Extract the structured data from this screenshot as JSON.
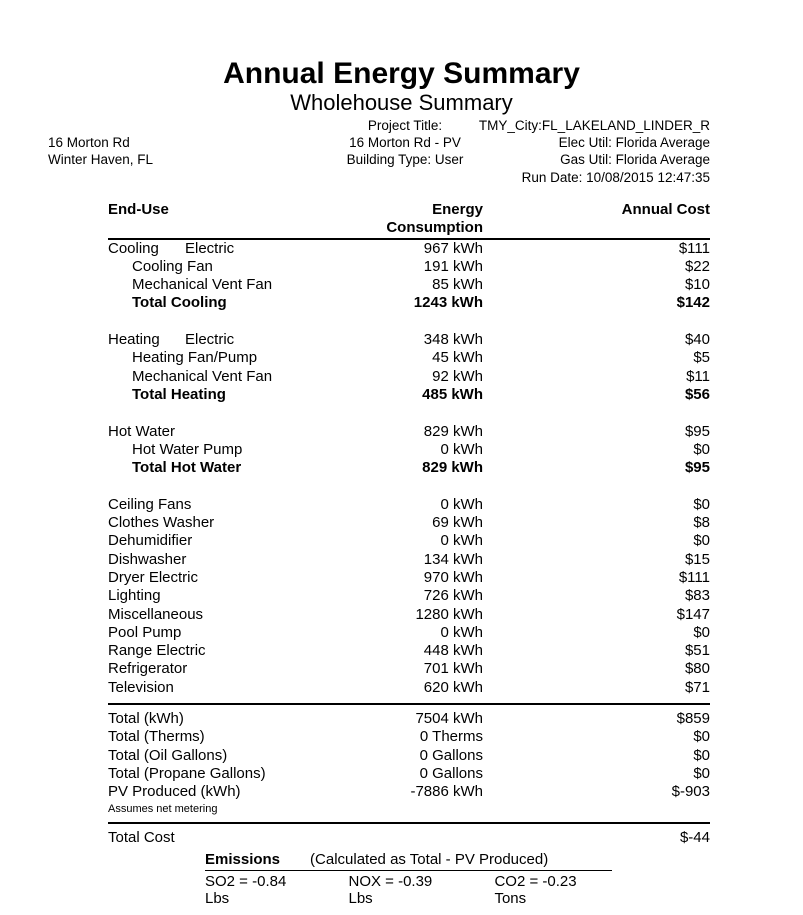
{
  "page": {
    "title": "Annual Energy Summary",
    "subtitle": "Wholehouse Summary"
  },
  "header_info": {
    "address": {
      "line1": "16 Morton Rd",
      "line2": "Winter Haven, FL"
    },
    "project": {
      "line1": "Project Title:",
      "line2": "16 Morton Rd - PV",
      "line3": "Building Type: User"
    },
    "site": {
      "line1": "TMY_City:FL_LAKELAND_LINDER_R",
      "line2": "Elec Util: Florida Average",
      "line3": "Gas Util: Florida Average",
      "line4": "Run Date: 10/08/2015 12:47:35"
    }
  },
  "table": {
    "columns": {
      "end_use": "End-Use",
      "consumption": "Energy Consumption",
      "cost": "Annual Cost"
    },
    "rows": [
      {
        "type": "data",
        "label": "Cooling",
        "fuel": "Electric",
        "value": "967 kWh",
        "cost": "$111"
      },
      {
        "type": "data",
        "label": "Cooling Fan",
        "indent": true,
        "value": "191 kWh",
        "cost": "$22"
      },
      {
        "type": "data",
        "label": "Mechanical Vent Fan",
        "indent": true,
        "value": "85 kWh",
        "cost": "$10"
      },
      {
        "type": "data",
        "label": "Total Cooling",
        "indent": true,
        "bold": true,
        "value": "1243 kWh",
        "cost": "$142"
      },
      {
        "type": "spacer"
      },
      {
        "type": "data",
        "label": "Heating",
        "fuel": "Electric",
        "value": "348 kWh",
        "cost": "$40"
      },
      {
        "type": "data",
        "label": "Heating Fan/Pump",
        "indent": true,
        "value": "45 kWh",
        "cost": "$5"
      },
      {
        "type": "data",
        "label": "Mechanical Vent Fan",
        "indent": true,
        "value": "92 kWh",
        "cost": "$11"
      },
      {
        "type": "data",
        "label": "Total Heating",
        "indent": true,
        "bold": true,
        "value": "485 kWh",
        "cost": "$56"
      },
      {
        "type": "spacer"
      },
      {
        "type": "data",
        "label": "Hot Water",
        "value": "829 kWh",
        "cost": "$95"
      },
      {
        "type": "data",
        "label": "Hot Water Pump",
        "indent": true,
        "value": "0 kWh",
        "cost": "$0"
      },
      {
        "type": "data",
        "label": "Total Hot Water",
        "indent": true,
        "bold": true,
        "value": "829 kWh",
        "cost": "$95"
      },
      {
        "type": "spacer"
      },
      {
        "type": "data",
        "label": "Ceiling Fans",
        "value": "0 kWh",
        "cost": "$0"
      },
      {
        "type": "data",
        "label": "Clothes Washer",
        "value": "69 kWh",
        "cost": "$8"
      },
      {
        "type": "data",
        "label": "Dehumidifier",
        "value": "0 kWh",
        "cost": "$0"
      },
      {
        "type": "data",
        "label": "Dishwasher",
        "value": "134 kWh",
        "cost": "$15"
      },
      {
        "type": "data",
        "label": "Dryer Electric",
        "value": "970 kWh",
        "cost": "$111"
      },
      {
        "type": "data",
        "label": "Lighting",
        "value": "726 kWh",
        "cost": "$83"
      },
      {
        "type": "data",
        "label": "Miscellaneous",
        "value": "1280 kWh",
        "cost": "$147"
      },
      {
        "type": "data",
        "label": "Pool Pump",
        "value": "0 kWh",
        "cost": "$0"
      },
      {
        "type": "data",
        "label": "Range Electric",
        "value": "448 kWh",
        "cost": "$51"
      },
      {
        "type": "data",
        "label": "Refrigerator",
        "value": "701 kWh",
        "cost": "$80"
      },
      {
        "type": "data",
        "label": "Television",
        "value": "620 kWh",
        "cost": "$71"
      },
      {
        "type": "rule"
      },
      {
        "type": "data",
        "label": "Total (kWh)",
        "value": "7504 kWh",
        "cost": "$859"
      },
      {
        "type": "data",
        "label": "Total (Therms)",
        "value": "0 Therms",
        "cost": "$0"
      },
      {
        "type": "data",
        "label": "Total (Oil Gallons)",
        "value": "0 Gallons",
        "cost": "$0"
      },
      {
        "type": "data",
        "label": "Total (Propane Gallons)",
        "value": "0 Gallons",
        "cost": "$0"
      },
      {
        "type": "data",
        "label": "PV Produced (kWh)",
        "value": "-7886 kWh",
        "cost": "$-903",
        "note": "Assumes net metering"
      },
      {
        "type": "rule"
      },
      {
        "type": "data",
        "label": "Total Cost",
        "value": "",
        "cost": "$-44"
      }
    ]
  },
  "emissions": {
    "title": "Emissions",
    "subtitle": "(Calculated as Total - PV Produced)",
    "so2": "SO2 = -0.84 Lbs",
    "nox": "NOX = -0.39 Lbs",
    "co2": "CO2 = -0.23 Tons"
  },
  "colors": {
    "text": "#000000",
    "background": "#ffffff"
  }
}
